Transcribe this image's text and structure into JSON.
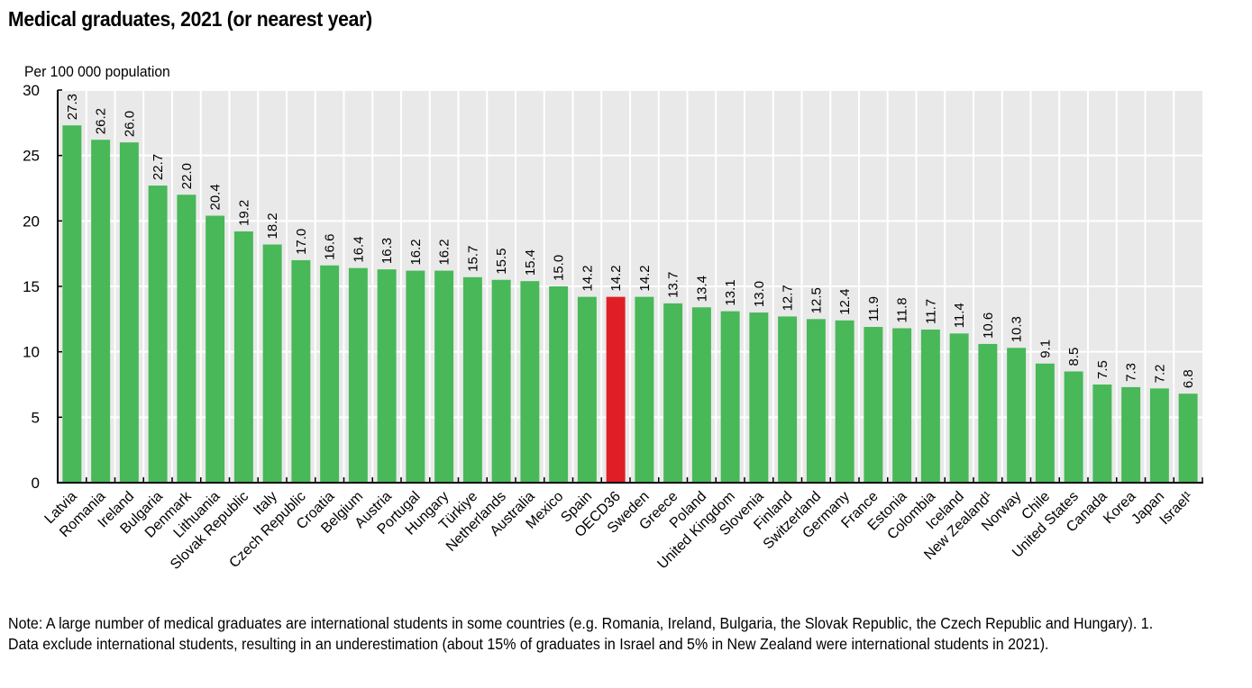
{
  "chart_data": {
    "type": "bar",
    "title": "Medical graduates, 2021 (or nearest year)",
    "ylabel": "Per 100 000 population",
    "xlabel": "",
    "ylim": [
      0,
      30
    ],
    "yticks": [
      0,
      5,
      10,
      15,
      20,
      25,
      30
    ],
    "grid": true,
    "legend": "none",
    "categories": [
      "Latvia",
      "Romania",
      "Ireland",
      "Bulgaria",
      "Denmark",
      "Lithuania",
      "Slovak Republic",
      "Italy",
      "Czech Republic",
      "Croatia",
      "Belgium",
      "Austria",
      "Portugal",
      "Hungary",
      "Türkiye",
      "Netherlands",
      "Australia",
      "Mexico",
      "Spain",
      "OECD36",
      "Sweden",
      "Greece",
      "Poland",
      "United Kingdom",
      "Slovenia",
      "Finland",
      "Switzerland",
      "Germany",
      "France",
      "Estonia",
      "Colombia",
      "Iceland",
      "New Zealand¹",
      "Norway",
      "Chile",
      "United States",
      "Canada",
      "Korea",
      "Japan",
      "Israel¹"
    ],
    "values": [
      27.3,
      26.2,
      26.0,
      22.7,
      22.0,
      20.4,
      19.2,
      18.2,
      17.0,
      16.6,
      16.4,
      16.3,
      16.2,
      16.2,
      15.7,
      15.5,
      15.4,
      15.0,
      14.2,
      14.2,
      14.2,
      13.7,
      13.4,
      13.1,
      13.0,
      12.7,
      12.5,
      12.4,
      11.9,
      11.8,
      11.7,
      11.4,
      10.6,
      10.3,
      9.1,
      8.5,
      7.5,
      7.3,
      7.2,
      6.8
    ],
    "value_labels": [
      "27.3",
      "26.2",
      "26.0",
      "22.7",
      "22.0",
      "20.4",
      "19.2",
      "18.2",
      "17.0",
      "16.6",
      "16.4",
      "16.3",
      "16.2",
      "16.2",
      "15.7",
      "15.5",
      "15.4",
      "15.0",
      "14.2",
      "14.2",
      "14.2",
      "13.7",
      "13.4",
      "13.1",
      "13.0",
      "12.7",
      "12.5",
      "12.4",
      "11.9",
      "11.8",
      "11.7",
      "11.4",
      "10.6",
      "10.3",
      "9.1",
      "8.5",
      "7.5",
      "7.3",
      "7.2",
      "6.8"
    ],
    "highlight_category": "OECD36",
    "colors": {
      "bar": "#48b858",
      "highlight": "#e01e25",
      "plot_bg": "#e9e9e9",
      "grid": "#ffffff"
    }
  },
  "note": "Note: A large number of medical graduates are international students in some countries (e.g. Romania, Ireland, Bulgaria, the Slovak Republic, the Czech Republic and Hungary). 1. Data exclude international students, resulting in an underestimation (about 15% of graduates in Israel and 5% in New Zealand were international students in 2021)."
}
